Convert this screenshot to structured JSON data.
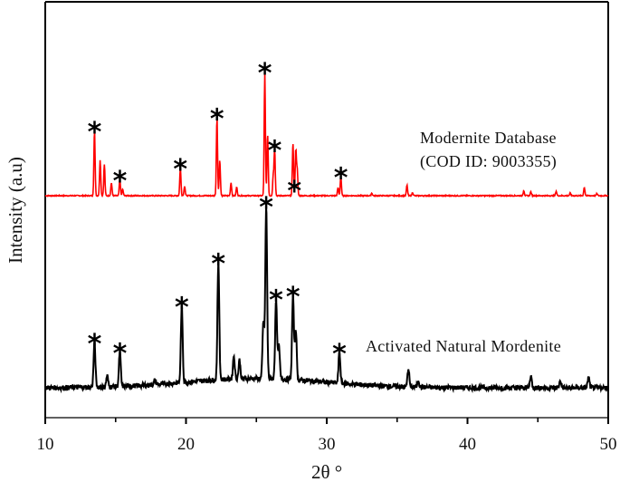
{
  "chart_data": {
    "type": "line",
    "title": "",
    "xlabel": "2θ °",
    "ylabel": "Intensity (a.u)",
    "xlim": [
      10,
      50
    ],
    "xticks": [
      10,
      20,
      30,
      40,
      50
    ],
    "xticks_minor": [
      15,
      25,
      35,
      45
    ],
    "yticks": [],
    "grid": false,
    "legend": null,
    "annotations": [
      {
        "text_lines": [
          "Modernite Database",
          "(COD ID: 9003355)"
        ],
        "series": "Modernite Database (COD ID: 9003355)"
      },
      {
        "text_lines": [
          "Activated Natural Mordenite"
        ],
        "series": "Activated Natural Mordenite"
      }
    ],
    "peak_marker": "*",
    "series": [
      {
        "name": "Modernite Database (COD ID: 9003355)",
        "color": "#ff0000",
        "baseline": 0,
        "peaks": [
          {
            "x": 13.5,
            "y": 100
          },
          {
            "x": 13.9,
            "y": 55
          },
          {
            "x": 14.2,
            "y": 48
          },
          {
            "x": 14.7,
            "y": 20
          },
          {
            "x": 15.3,
            "y": 25
          },
          {
            "x": 15.5,
            "y": 10
          },
          {
            "x": 19.6,
            "y": 43
          },
          {
            "x": 19.9,
            "y": 15
          },
          {
            "x": 22.2,
            "y": 120
          },
          {
            "x": 22.4,
            "y": 55
          },
          {
            "x": 23.2,
            "y": 20
          },
          {
            "x": 23.6,
            "y": 13
          },
          {
            "x": 25.6,
            "y": 190
          },
          {
            "x": 25.8,
            "y": 95
          },
          {
            "x": 26.2,
            "y": 30
          },
          {
            "x": 26.3,
            "y": 70
          },
          {
            "x": 27.6,
            "y": 82
          },
          {
            "x": 27.8,
            "y": 70
          },
          {
            "x": 27.9,
            "y": 40
          },
          {
            "x": 30.8,
            "y": 12
          },
          {
            "x": 31.0,
            "y": 30
          },
          {
            "x": 33.2,
            "y": 4
          },
          {
            "x": 35.7,
            "y": 16
          },
          {
            "x": 36.1,
            "y": 5
          },
          {
            "x": 44.0,
            "y": 8
          },
          {
            "x": 44.5,
            "y": 6
          },
          {
            "x": 46.3,
            "y": 7
          },
          {
            "x": 47.3,
            "y": 4
          },
          {
            "x": 48.3,
            "y": 13
          },
          {
            "x": 49.2,
            "y": 3
          }
        ],
        "starred_peaks_x": [
          13.5,
          15.3,
          19.6,
          22.2,
          25.6,
          26.3,
          27.7,
          31.0
        ]
      },
      {
        "name": "Activated Natural Mordenite",
        "color": "#000000",
        "baseline": 0,
        "peaks": [
          {
            "x": 13.5,
            "y": 48
          },
          {
            "x": 14.4,
            "y": 12
          },
          {
            "x": 15.3,
            "y": 37
          },
          {
            "x": 17.8,
            "y": 5
          },
          {
            "x": 19.7,
            "y": 82
          },
          {
            "x": 22.3,
            "y": 126
          },
          {
            "x": 23.4,
            "y": 25
          },
          {
            "x": 23.8,
            "y": 20
          },
          {
            "x": 25.7,
            "y": 185
          },
          {
            "x": 25.5,
            "y": 60
          },
          {
            "x": 26.4,
            "y": 86
          },
          {
            "x": 26.6,
            "y": 35
          },
          {
            "x": 27.6,
            "y": 90
          },
          {
            "x": 27.8,
            "y": 55
          },
          {
            "x": 30.9,
            "y": 33
          },
          {
            "x": 35.8,
            "y": 20
          },
          {
            "x": 36.5,
            "y": 8
          },
          {
            "x": 44.5,
            "y": 13
          },
          {
            "x": 46.6,
            "y": 8
          },
          {
            "x": 48.6,
            "y": 11
          }
        ],
        "starred_peaks_x": [
          13.5,
          15.3,
          19.7,
          22.3,
          25.7,
          26.4,
          27.6,
          30.9
        ]
      }
    ]
  }
}
